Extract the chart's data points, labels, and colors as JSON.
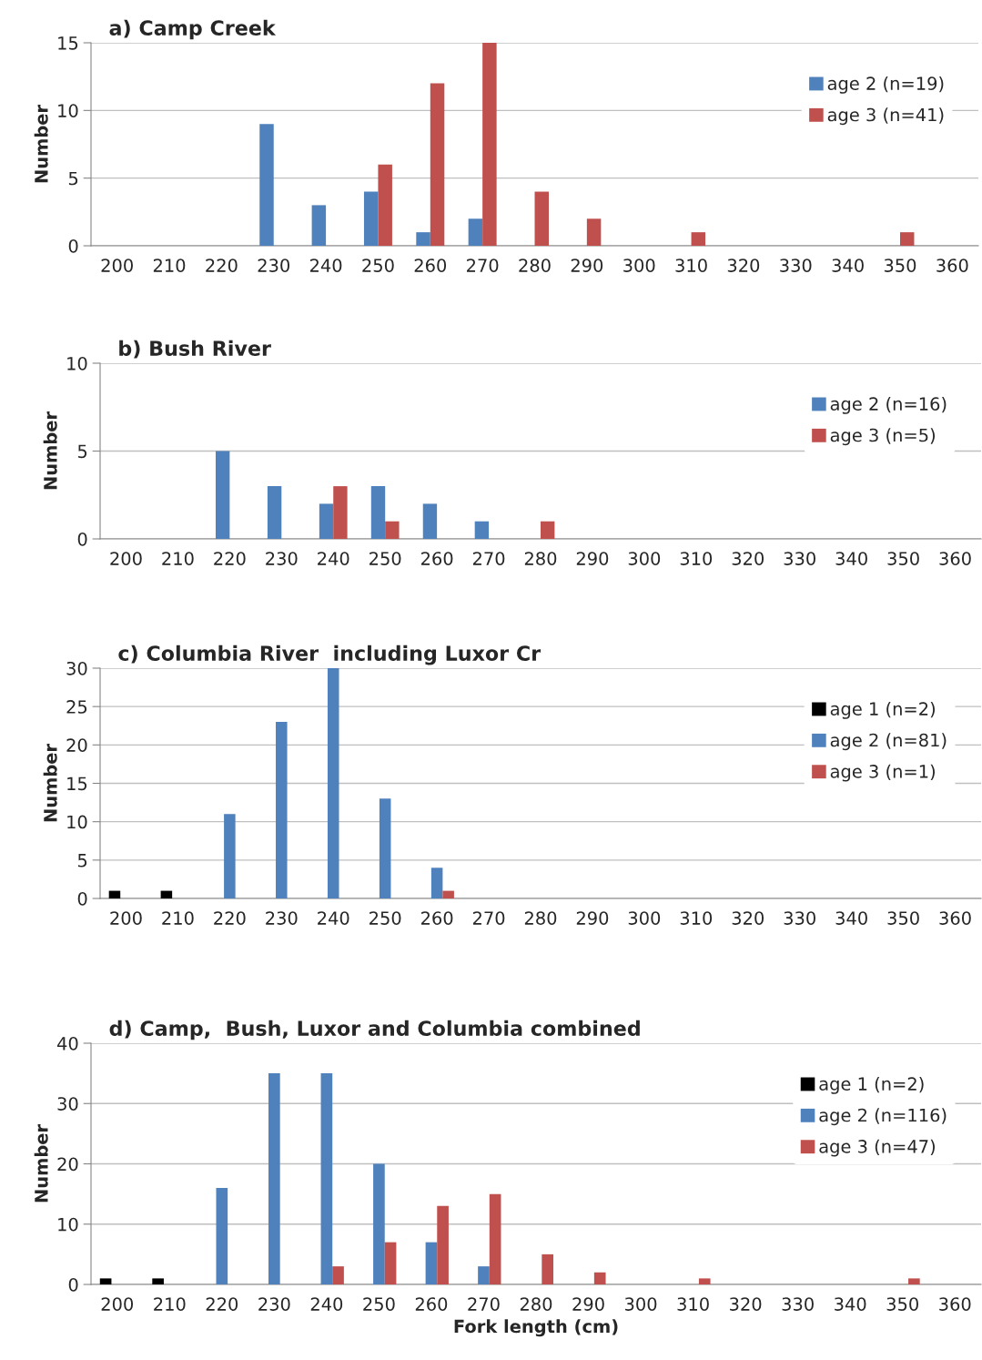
{
  "chart_data": [
    {
      "type": "bar",
      "title": "a) Camp Creek",
      "ylabel": "Number",
      "categories": [
        "200",
        "210",
        "220",
        "230",
        "240",
        "250",
        "260",
        "270",
        "280",
        "290",
        "300",
        "310",
        "320",
        "330",
        "340",
        "350",
        "360"
      ],
      "ylim": [
        0,
        15
      ],
      "yticks": [
        0,
        5,
        10,
        15
      ],
      "grid": "y",
      "legend": "top right",
      "series": [
        {
          "name": "age 2 (n=19)",
          "color": "#4f81bd",
          "values": [
            null,
            null,
            null,
            9,
            3,
            4,
            1,
            2,
            null,
            null,
            null,
            null,
            null,
            null,
            null,
            null,
            null
          ]
        },
        {
          "name": "age 3 (n=41)",
          "color": "#c0504d",
          "values": [
            null,
            null,
            null,
            null,
            null,
            6,
            12,
            15,
            4,
            2,
            null,
            1,
            null,
            null,
            null,
            1,
            null
          ]
        }
      ]
    },
    {
      "type": "bar",
      "title": "b) Bush River",
      "ylabel": "Number",
      "categories": [
        "200",
        "210",
        "220",
        "230",
        "240",
        "250",
        "260",
        "270",
        "280",
        "290",
        "300",
        "310",
        "320",
        "330",
        "340",
        "350",
        "360"
      ],
      "ylim": [
        0,
        10
      ],
      "yticks": [
        0,
        5,
        10
      ],
      "grid": "y",
      "legend": "top right",
      "series": [
        {
          "name": "age 2 (n=16)",
          "color": "#4f81bd",
          "values": [
            null,
            null,
            5,
            3,
            2,
            3,
            2,
            1,
            null,
            null,
            null,
            null,
            null,
            null,
            null,
            null,
            null
          ]
        },
        {
          "name": "age 3 (n=5)",
          "color": "#c0504d",
          "values": [
            null,
            null,
            null,
            null,
            3,
            1,
            null,
            null,
            1,
            null,
            null,
            null,
            null,
            null,
            null,
            null,
            null
          ]
        }
      ]
    },
    {
      "type": "bar",
      "title": "c) Columbia River  including Luxor Cr",
      "ylabel": "Number",
      "categories": [
        "200",
        "210",
        "220",
        "230",
        "240",
        "250",
        "260",
        "270",
        "280",
        "290",
        "300",
        "310",
        "320",
        "330",
        "340",
        "350",
        "360"
      ],
      "ylim": [
        0,
        30
      ],
      "yticks": [
        0,
        5,
        10,
        15,
        20,
        25,
        30
      ],
      "grid": "y",
      "legend": "top right",
      "series": [
        {
          "name": "age 1 (n=2)",
          "color": "#000000",
          "values": [
            1,
            1,
            null,
            null,
            null,
            null,
            null,
            null,
            null,
            null,
            null,
            null,
            null,
            null,
            null,
            null,
            null
          ]
        },
        {
          "name": "age 2 (n=81)",
          "color": "#4f81bd",
          "values": [
            null,
            null,
            11,
            23,
            30,
            13,
            4,
            null,
            null,
            null,
            null,
            null,
            null,
            null,
            null,
            null,
            null
          ]
        },
        {
          "name": "age 3 (n=1)",
          "color": "#c0504d",
          "values": [
            null,
            null,
            null,
            null,
            null,
            null,
            1,
            null,
            null,
            null,
            null,
            null,
            null,
            null,
            null,
            null,
            null
          ]
        }
      ]
    },
    {
      "type": "bar",
      "title": "d) Camp,  Bush, Luxor and Columbia combined",
      "ylabel": "Number",
      "xlabel": "Fork length (cm)",
      "categories": [
        "200",
        "210",
        "220",
        "230",
        "240",
        "250",
        "260",
        "270",
        "280",
        "290",
        "300",
        "310",
        "320",
        "330",
        "340",
        "350",
        "360"
      ],
      "ylim": [
        0,
        40
      ],
      "yticks": [
        0,
        10,
        20,
        30,
        40
      ],
      "grid": "y",
      "legend": "top right",
      "series": [
        {
          "name": "age 1 (n=2)",
          "color": "#000000",
          "values": [
            1,
            1,
            null,
            null,
            null,
            null,
            null,
            null,
            null,
            null,
            null,
            null,
            null,
            null,
            null,
            null,
            null
          ]
        },
        {
          "name": "age 2 (n=116)",
          "color": "#4f81bd",
          "values": [
            null,
            null,
            16,
            35,
            35,
            20,
            7,
            3,
            null,
            null,
            null,
            null,
            null,
            null,
            null,
            null,
            null
          ]
        },
        {
          "name": "age 3 (n=47)",
          "color": "#c0504d",
          "values": [
            null,
            null,
            null,
            null,
            3,
            7,
            13,
            15,
            5,
            2,
            null,
            1,
            null,
            null,
            null,
            1,
            null
          ]
        }
      ]
    }
  ]
}
